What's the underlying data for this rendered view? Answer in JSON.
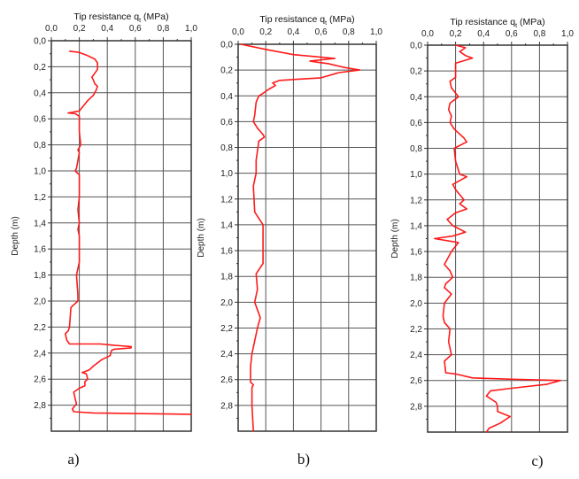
{
  "chart_data": [
    {
      "type": "line",
      "panel_label": "a)",
      "title": "Tip resistance q",
      "title_sub": "t",
      "title_unit": "(MPa)",
      "xlabel": "Tip resistance qt (MPa)",
      "ylabel": "Depth (m)",
      "xlim": [
        0,
        1.0
      ],
      "ylim": [
        0,
        3.0
      ],
      "y_inverted": true,
      "x_axis_position": "top",
      "grid": true,
      "xticks": [
        "0,0",
        "0,2",
        "0,4",
        "0,6",
        "0,8",
        "1,0"
      ],
      "yticks": [
        "0,0",
        "0,2",
        "0,4",
        "0,6",
        "0,8",
        "1,0",
        "1,2",
        "1,4",
        "1,6",
        "1,8",
        "2,0",
        "2,2",
        "2,4",
        "2,6",
        "2,8"
      ],
      "color": "#ff1a1a",
      "points": [
        [
          0.13,
          0.08
        ],
        [
          0.2,
          0.09
        ],
        [
          0.25,
          0.11
        ],
        [
          0.31,
          0.14
        ],
        [
          0.33,
          0.17
        ],
        [
          0.33,
          0.22
        ],
        [
          0.31,
          0.25
        ],
        [
          0.29,
          0.28
        ],
        [
          0.3,
          0.3
        ],
        [
          0.31,
          0.33
        ],
        [
          0.33,
          0.35
        ],
        [
          0.32,
          0.38
        ],
        [
          0.3,
          0.42
        ],
        [
          0.26,
          0.46
        ],
        [
          0.23,
          0.5
        ],
        [
          0.2,
          0.54
        ],
        [
          0.17,
          0.545
        ],
        [
          0.12,
          0.555
        ],
        [
          0.17,
          0.56
        ],
        [
          0.2,
          0.58
        ],
        [
          0.2,
          0.7
        ],
        [
          0.21,
          0.8
        ],
        [
          0.19,
          0.84
        ],
        [
          0.2,
          0.86
        ],
        [
          0.18,
          0.98
        ],
        [
          0.17,
          1.0
        ],
        [
          0.2,
          1.03
        ],
        [
          0.2,
          1.2
        ],
        [
          0.19,
          1.3
        ],
        [
          0.2,
          1.4
        ],
        [
          0.19,
          1.45
        ],
        [
          0.2,
          1.5
        ],
        [
          0.2,
          1.7
        ],
        [
          0.18,
          1.8
        ],
        [
          0.19,
          1.95
        ],
        [
          0.19,
          2.0
        ],
        [
          0.14,
          2.05
        ],
        [
          0.13,
          2.2
        ],
        [
          0.12,
          2.23
        ],
        [
          0.1,
          2.25
        ],
        [
          0.11,
          2.3
        ],
        [
          0.13,
          2.33
        ],
        [
          0.35,
          2.33
        ],
        [
          0.45,
          2.34
        ],
        [
          0.57,
          2.35
        ],
        [
          0.57,
          2.36
        ],
        [
          0.45,
          2.37
        ],
        [
          0.43,
          2.38
        ],
        [
          0.42,
          2.42
        ],
        [
          0.36,
          2.45
        ],
        [
          0.3,
          2.5
        ],
        [
          0.27,
          2.53
        ],
        [
          0.22,
          2.55
        ],
        [
          0.25,
          2.56
        ],
        [
          0.26,
          2.6
        ],
        [
          0.24,
          2.62
        ],
        [
          0.24,
          2.65
        ],
        [
          0.2,
          2.67
        ],
        [
          0.16,
          2.7
        ],
        [
          0.17,
          2.75
        ],
        [
          0.18,
          2.79
        ],
        [
          0.15,
          2.83
        ],
        [
          0.16,
          2.85
        ],
        [
          0.3,
          2.86
        ],
        [
          1.0,
          2.87
        ]
      ]
    },
    {
      "type": "line",
      "panel_label": "b)",
      "title": "Tip resistance q",
      "title_sub": "t",
      "title_unit": "(MPa)",
      "xlabel": "Tip resistance qt (MPa)",
      "ylabel": "Depth (m)",
      "xlim": [
        0,
        1.0
      ],
      "ylim": [
        0,
        3.0
      ],
      "y_inverted": true,
      "x_axis_position": "top",
      "grid": true,
      "xticks": [
        "0,0",
        "0,2",
        "0,4",
        "0,6",
        "0,8",
        "1,0"
      ],
      "yticks": [
        "0,0",
        "0,2",
        "0,4",
        "0,6",
        "0,8",
        "1,0",
        "1,2",
        "1,4",
        "1,6",
        "1,8",
        "2,0",
        "2,2",
        "2,4",
        "2,6",
        "2,8"
      ],
      "color": "#ff1a1a",
      "points": [
        [
          0.02,
          0.0
        ],
        [
          0.2,
          0.04
        ],
        [
          0.4,
          0.08
        ],
        [
          0.6,
          0.1
        ],
        [
          0.7,
          0.11
        ],
        [
          0.52,
          0.13
        ],
        [
          0.58,
          0.14
        ],
        [
          0.65,
          0.15
        ],
        [
          0.77,
          0.18
        ],
        [
          0.88,
          0.2
        ],
        [
          0.73,
          0.22
        ],
        [
          0.6,
          0.26
        ],
        [
          0.45,
          0.27
        ],
        [
          0.3,
          0.28
        ],
        [
          0.25,
          0.3
        ],
        [
          0.27,
          0.32
        ],
        [
          0.22,
          0.35
        ],
        [
          0.18,
          0.38
        ],
        [
          0.15,
          0.4
        ],
        [
          0.13,
          0.45
        ],
        [
          0.12,
          0.55
        ],
        [
          0.11,
          0.6
        ],
        [
          0.14,
          0.65
        ],
        [
          0.18,
          0.7
        ],
        [
          0.19,
          0.72
        ],
        [
          0.15,
          0.75
        ],
        [
          0.13,
          0.9
        ],
        [
          0.13,
          1.0
        ],
        [
          0.11,
          1.1
        ],
        [
          0.12,
          1.3
        ],
        [
          0.18,
          1.4
        ],
        [
          0.18,
          1.6
        ],
        [
          0.18,
          1.7
        ],
        [
          0.13,
          1.78
        ],
        [
          0.14,
          1.9
        ],
        [
          0.12,
          2.0
        ],
        [
          0.16,
          2.12
        ],
        [
          0.14,
          2.2
        ],
        [
          0.1,
          2.4
        ],
        [
          0.09,
          2.5
        ],
        [
          0.09,
          2.62
        ],
        [
          0.11,
          2.64
        ],
        [
          0.1,
          2.66
        ],
        [
          0.1,
          2.8
        ],
        [
          0.11,
          3.0
        ]
      ]
    },
    {
      "type": "line",
      "panel_label": "c)",
      "title": "Tip resistance q",
      "title_sub": "t",
      "title_unit": "(MPa)",
      "xlabel": "Tip resistance qt (MPa)",
      "ylabel": "Depth (m)",
      "xlim": [
        0,
        1.0
      ],
      "ylim": [
        0,
        3.0
      ],
      "y_inverted": true,
      "x_axis_position": "top",
      "grid": true,
      "xticks": [
        "0,0",
        "0,2",
        "0,4",
        "0,6",
        "0,8",
        "1,0"
      ],
      "yticks": [
        "0,0",
        "0,2",
        "0,4",
        "0,6",
        "0,8",
        "1,0",
        "1,2",
        "1,4",
        "1,6",
        "1,8",
        "2,0",
        "2,2",
        "2,4",
        "2,6",
        "2,8"
      ],
      "color": "#ff1a1a",
      "points": [
        [
          0.2,
          0.0
        ],
        [
          0.27,
          0.02
        ],
        [
          0.23,
          0.05
        ],
        [
          0.27,
          0.08
        ],
        [
          0.32,
          0.1
        ],
        [
          0.2,
          0.14
        ],
        [
          0.2,
          0.2
        ],
        [
          0.2,
          0.25
        ],
        [
          0.16,
          0.28
        ],
        [
          0.17,
          0.33
        ],
        [
          0.22,
          0.4
        ],
        [
          0.16,
          0.45
        ],
        [
          0.15,
          0.5
        ],
        [
          0.17,
          0.55
        ],
        [
          0.16,
          0.6
        ],
        [
          0.19,
          0.65
        ],
        [
          0.26,
          0.72
        ],
        [
          0.28,
          0.75
        ],
        [
          0.19,
          0.8
        ],
        [
          0.2,
          0.9
        ],
        [
          0.23,
          1.0
        ],
        [
          0.28,
          1.02
        ],
        [
          0.18,
          1.08
        ],
        [
          0.2,
          1.12
        ],
        [
          0.26,
          1.2
        ],
        [
          0.23,
          1.23
        ],
        [
          0.28,
          1.27
        ],
        [
          0.2,
          1.3
        ],
        [
          0.14,
          1.35
        ],
        [
          0.18,
          1.4
        ],
        [
          0.27,
          1.45
        ],
        [
          0.18,
          1.48
        ],
        [
          0.05,
          1.5
        ],
        [
          0.22,
          1.53
        ],
        [
          0.17,
          1.6
        ],
        [
          0.12,
          1.7
        ],
        [
          0.16,
          1.75
        ],
        [
          0.18,
          1.8
        ],
        [
          0.13,
          1.85
        ],
        [
          0.12,
          1.88
        ],
        [
          0.17,
          1.93
        ],
        [
          0.12,
          2.0
        ],
        [
          0.11,
          2.1
        ],
        [
          0.12,
          2.15
        ],
        [
          0.16,
          2.2
        ],
        [
          0.15,
          2.3
        ],
        [
          0.17,
          2.4
        ],
        [
          0.12,
          2.45
        ],
        [
          0.13,
          2.54
        ],
        [
          0.2,
          2.55
        ],
        [
          0.32,
          2.58
        ],
        [
          0.6,
          2.59
        ],
        [
          0.95,
          2.6
        ],
        [
          0.85,
          2.63
        ],
        [
          0.6,
          2.66
        ],
        [
          0.45,
          2.68
        ],
        [
          0.42,
          2.72
        ],
        [
          0.49,
          2.77
        ],
        [
          0.5,
          2.8
        ],
        [
          0.5,
          2.84
        ],
        [
          0.59,
          2.88
        ],
        [
          0.52,
          2.93
        ],
        [
          0.44,
          2.97
        ],
        [
          0.42,
          3.0
        ]
      ]
    }
  ]
}
